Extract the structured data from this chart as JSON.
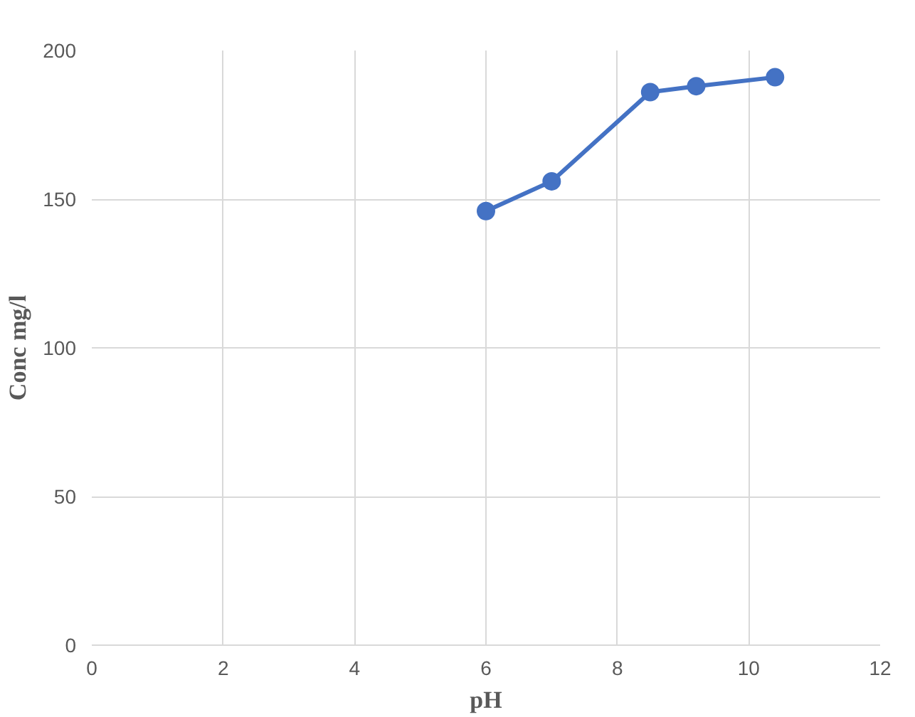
{
  "chart_data": {
    "type": "line",
    "xlabel": "pH",
    "ylabel": "Conc mg/l",
    "x": [
      6,
      7,
      8.5,
      9.2,
      10.4
    ],
    "series": [
      {
        "color": "#4472c4",
        "values": [
          146,
          156,
          186,
          188,
          191
        ]
      }
    ],
    "xlim": [
      0,
      12
    ],
    "xticks": [
      0,
      2,
      4,
      6,
      8,
      10,
      12
    ],
    "ylim": [
      0,
      200
    ],
    "yticks": [
      0,
      50,
      100,
      150,
      200
    ],
    "grid": true,
    "marker": "circle",
    "line_style": "solid"
  }
}
